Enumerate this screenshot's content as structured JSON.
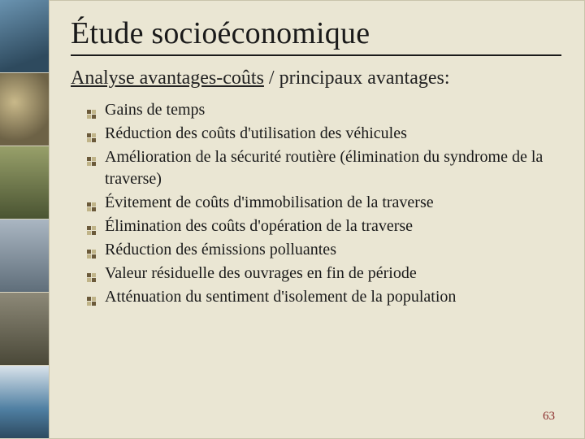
{
  "title": "Étude socioéconomique",
  "subtitle": {
    "underlined": "Analyse avantages-coûts",
    "rest": " / principaux avantages:"
  },
  "bullets": [
    "Gains de temps",
    "Réduction des coûts d'utilisation des véhicules",
    "Amélioration de la sécurité routière (élimination du syndrome de la traverse)",
    "Évitement de coûts d'immobilisation de la traverse",
    "Élimination des coûts d'opération de la traverse",
    "Réduction des émissions polluantes",
    "Valeur résiduelle des ouvrages en fin de période",
    "Atténuation du sentiment d'isolement de la population"
  ],
  "page_number": "63",
  "bullet_icon_colors": {
    "dark": "#6b5a3a",
    "light": "#c0b488"
  },
  "sidebar_thumb_count": 6
}
